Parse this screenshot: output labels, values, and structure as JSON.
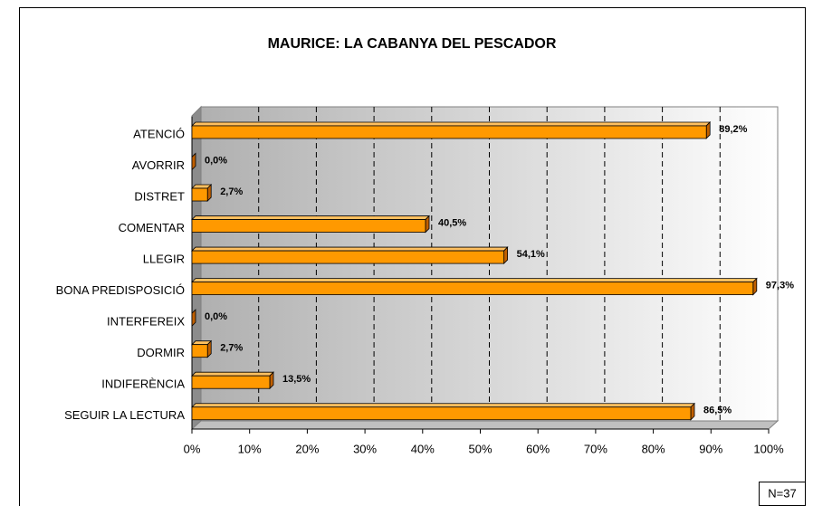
{
  "chart_data": {
    "type": "bar",
    "orientation": "horizontal",
    "title": "MAURICE: LA CABANYA DEL PESCADOR",
    "categories": [
      "ATENCIÓ",
      "AVORRIR",
      "DISTRET",
      "COMENTAR",
      "LLEGIR",
      "BONA PREDISPOSICIÓ",
      "INTERFEREIX",
      "DORMIR",
      "INDIFERÈNCIA",
      "SEGUIR LA LECTURA"
    ],
    "values": [
      89.2,
      0,
      2.7,
      40.5,
      54.1,
      97.3,
      0,
      2.7,
      13.5,
      86.5
    ],
    "value_labels": [
      "89,2%",
      "0,0%",
      "2,7%",
      "40,5%",
      "54,1%",
      "97,3%",
      "0,0%",
      "2,7%",
      "13,5%",
      "86,5%"
    ],
    "color": "#ff9900",
    "xlim": [
      0,
      100
    ],
    "xticks": [
      {
        "value": 0,
        "label": "0%"
      },
      {
        "value": 10,
        "label": "10%"
      },
      {
        "value": 20,
        "label": "20%"
      },
      {
        "value": 30,
        "label": "30%"
      },
      {
        "value": 40,
        "label": "40%"
      },
      {
        "value": 50,
        "label": "50%"
      },
      {
        "value": 60,
        "label": "60%"
      },
      {
        "value": 70,
        "label": "70%"
      },
      {
        "value": 80,
        "label": "80%"
      },
      {
        "value": 90,
        "label": "90%"
      },
      {
        "value": 100,
        "label": "100%"
      }
    ],
    "grid": true,
    "annotation": "N=37"
  }
}
